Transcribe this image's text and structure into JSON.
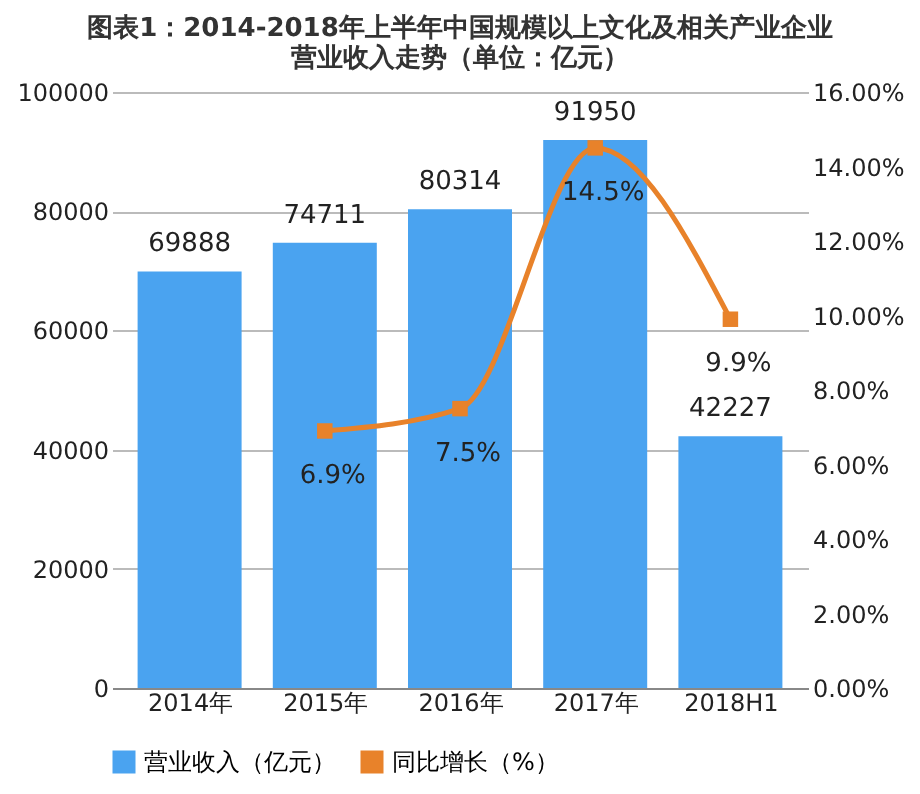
{
  "chart_data": {
    "type": "bar",
    "title": [
      "图表1：2014-2018年上半年中国规模以上文化及相关产业企业",
      "营业收入走势（单位：亿元）"
    ],
    "categories": [
      "2014年",
      "2015年",
      "2016年",
      "2017年",
      "2018H1"
    ],
    "series": [
      {
        "name": "营业收入（亿元）",
        "color": "#4aa3f0",
        "values": [
          69888,
          74711,
          80314,
          91950,
          42227
        ],
        "value_labels": [
          "69888",
          "74711",
          "80314",
          "91950",
          "42227"
        ]
      },
      {
        "name": "同比增长（%）",
        "type": "line",
        "axis": "y2",
        "color": "#e8822a",
        "marker": "square",
        "values": [
          null,
          6.9,
          7.5,
          14.5,
          9.9
        ],
        "value_labels": [
          null,
          "6.9%",
          "7.5%",
          "14.5%",
          "9.9%"
        ]
      }
    ],
    "ylim": [
      0,
      100000
    ],
    "yticks": [
      0,
      20000,
      40000,
      60000,
      80000,
      100000
    ],
    "y2lim": [
      0,
      16
    ],
    "y2ticks": [
      {
        "value": 0,
        "label": "0.00%"
      },
      {
        "value": 2,
        "label": "2.00%"
      },
      {
        "value": 4,
        "label": "4.00%"
      },
      {
        "value": 6,
        "label": "6.00%"
      },
      {
        "value": 8,
        "label": "8.00%"
      },
      {
        "value": 10,
        "label": "10.00%"
      },
      {
        "value": 12,
        "label": "12.00%"
      },
      {
        "value": 14,
        "label": "14.00%"
      },
      {
        "value": 16,
        "label": "16.00%"
      }
    ],
    "grid": "y",
    "legend": "bottom"
  }
}
